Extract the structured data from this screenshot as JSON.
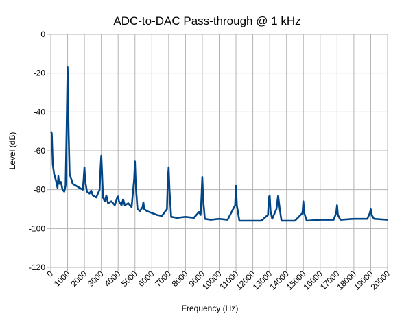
{
  "chart_data": {
    "type": "line",
    "title": "ADC-to-DAC Pass-through @ 1 kHz",
    "x_label": "Frequency (Hz)",
    "y_label": "Level (dB)",
    "xlim": [
      0,
      20000
    ],
    "xticks": [
      0,
      1000,
      2000,
      3000,
      4000,
      5000,
      6000,
      7000,
      8000,
      9000,
      10000,
      11000,
      12000,
      13000,
      14000,
      15000,
      16000,
      17000,
      18000,
      19000,
      20000
    ],
    "ylim": [
      -120,
      0
    ],
    "yticks": [
      -120,
      -100,
      -80,
      -60,
      -40,
      -20,
      0
    ],
    "grid": true,
    "series": [
      {
        "color": "#004586",
        "x": [
          0,
          60,
          120,
          200,
          300,
          400,
          450,
          500,
          600,
          700,
          800,
          880,
          940,
          1000,
          1060,
          1120,
          1200,
          1300,
          1500,
          1700,
          1900,
          1950,
          2000,
          2050,
          2150,
          2300,
          2400,
          2500,
          2700,
          2900,
          2960,
          3000,
          3040,
          3100,
          3200,
          3300,
          3400,
          3600,
          3800,
          3950,
          4000,
          4050,
          4200,
          4300,
          4400,
          4600,
          4800,
          4950,
          5000,
          5050,
          5150,
          5300,
          5450,
          5500,
          5550,
          5700,
          6000,
          6300,
          6600,
          6900,
          6950,
          7000,
          7050,
          7150,
          7500,
          8000,
          8500,
          8800,
          8900,
          8950,
          9000,
          9050,
          9150,
          9500,
          10000,
          10500,
          10950,
          11000,
          11050,
          11200,
          11600,
          12000,
          12500,
          12900,
          12950,
          13000,
          13050,
          13150,
          13400,
          13500,
          13600,
          13700,
          14000,
          14500,
          14950,
          15000,
          15050,
          15200,
          16000,
          16800,
          16950,
          17000,
          17050,
          17200,
          18000,
          18800,
          18950,
          19000,
          19050,
          19200,
          20000
        ],
        "values": [
          -50,
          -51,
          -67,
          -72,
          -75,
          -79,
          -73,
          -77,
          -76,
          -80,
          -81,
          -78,
          -50,
          -17,
          -50,
          -72,
          -74,
          -77,
          -78,
          -79,
          -80,
          -75,
          -68.5,
          -76,
          -81,
          -82,
          -80.5,
          -83,
          -84,
          -80,
          -68,
          -62.5,
          -70,
          -84,
          -86,
          -83,
          -87,
          -86,
          -88,
          -84,
          -83.5,
          -86,
          -88,
          -85,
          -88,
          -87,
          -89,
          -75,
          -65.5,
          -78,
          -90,
          -91,
          -89,
          -86.5,
          -90,
          -91,
          -92,
          -93,
          -93.5,
          -90,
          -75,
          -68.5,
          -80,
          -94,
          -94.5,
          -94,
          -94.5,
          -91.5,
          -93,
          -84,
          -73.5,
          -85,
          -95,
          -95.5,
          -95,
          -95.5,
          -88,
          -78,
          -88,
          -96,
          -96,
          -96,
          -96,
          -93,
          -84,
          -83,
          -91,
          -95,
          -90,
          -83,
          -90,
          -96,
          -96,
          -96,
          -92,
          -86,
          -92,
          -96,
          -95.5,
          -95.5,
          -92,
          -88,
          -93,
          -95.5,
          -95,
          -95,
          -92,
          -90,
          -93,
          -95,
          -95.5
        ]
      }
    ]
  }
}
